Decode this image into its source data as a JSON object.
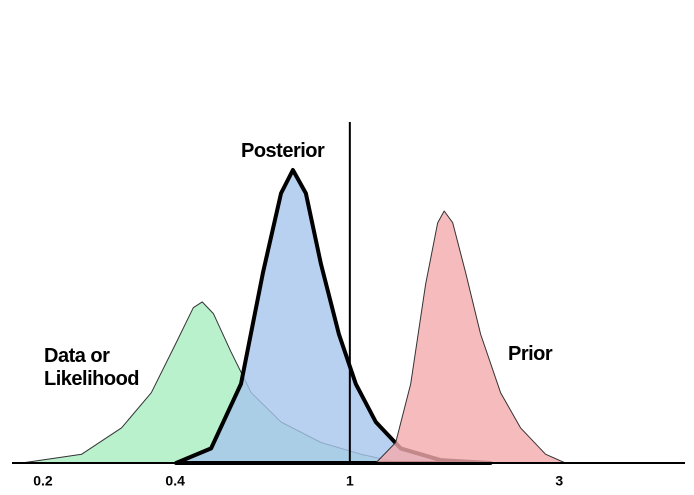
{
  "chart_data": {
    "type": "area",
    "xscale": "log",
    "xlim": [
      0.17,
      5.8
    ],
    "xticks": [
      0.2,
      0.4,
      1,
      3
    ],
    "ylim": [
      0,
      1
    ],
    "vline": 1,
    "series": [
      {
        "name": "Data or Likelihood",
        "color": "#a9eec0",
        "x": [
          0.179,
          0.245,
          0.302,
          0.353,
          0.402,
          0.44,
          0.461,
          0.489,
          0.536,
          0.596,
          0.697,
          0.859,
          1.059,
          1.306
        ],
        "values": [
          0,
          0.03,
          0.12,
          0.24,
          0.41,
          0.53,
          0.55,
          0.51,
          0.38,
          0.24,
          0.14,
          0.07,
          0.03,
          0
        ]
      },
      {
        "name": "Posterior",
        "color": "#a8c6ee",
        "x": [
          0.402,
          0.483,
          0.565,
          0.634,
          0.697,
          0.742,
          0.794,
          0.859,
          0.944,
          1.032,
          1.146,
          1.306,
          1.61,
          2.09
        ],
        "values": [
          0,
          0.05,
          0.27,
          0.65,
          0.92,
          1,
          0.92,
          0.68,
          0.44,
          0.27,
          0.14,
          0.05,
          0.01,
          0
        ]
      },
      {
        "name": "Prior",
        "color": "#f4aaad",
        "x": [
          1.146,
          1.272,
          1.376,
          1.488,
          1.585,
          1.64,
          1.715,
          1.835,
          1.985,
          2.205,
          2.447,
          2.79,
          3.097
        ],
        "values": [
          0,
          0.07,
          0.27,
          0.61,
          0.82,
          0.86,
          0.82,
          0.65,
          0.44,
          0.24,
          0.12,
          0.03,
          0
        ]
      }
    ]
  }
}
